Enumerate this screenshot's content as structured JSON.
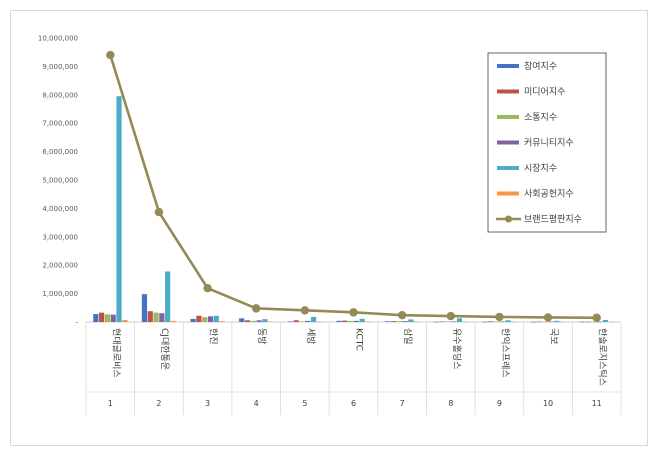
{
  "chart_data": {
    "type": "bar",
    "title": "",
    "xlabel": "",
    "ylabel": "",
    "ylim": [
      0,
      10000000
    ],
    "yticks": [
      "-",
      "1,000,000",
      "2,000,000",
      "3,000,000",
      "4,000,000",
      "5,000,000",
      "6,000,000",
      "7,000,000",
      "8,000,000",
      "9,000,000",
      "10,000,000"
    ],
    "categories": [
      "현대글로비스",
      "CJ대한통운",
      "한진",
      "동방",
      "세방",
      "KCTC",
      "삼일",
      "유수홀딩스",
      "한익스프레스",
      "국보",
      "한솔로지스틱스"
    ],
    "indices": [
      "1",
      "2",
      "3",
      "4",
      "5",
      "6",
      "7",
      "8",
      "9",
      "10",
      "11"
    ],
    "grid": false,
    "legend_position": "right",
    "series": [
      {
        "name": "참여지수",
        "kind": "bar",
        "color": "#4472c4",
        "values": [
          280000,
          980000,
          110000,
          130000,
          20000,
          40000,
          25000,
          10000,
          10000,
          8000,
          10000
        ]
      },
      {
        "name": "미디어지수",
        "kind": "bar",
        "color": "#c0504d",
        "values": [
          330000,
          380000,
          220000,
          60000,
          60000,
          50000,
          30000,
          20000,
          25000,
          15000,
          8000
        ]
      },
      {
        "name": "소통지수",
        "kind": "bar",
        "color": "#9bbb59",
        "values": [
          270000,
          330000,
          170000,
          40000,
          20000,
          40000,
          30000,
          20000,
          20000,
          15000,
          10000
        ]
      },
      {
        "name": "커뮤니티지수",
        "kind": "bar",
        "color": "#8064a2",
        "values": [
          260000,
          310000,
          200000,
          60000,
          40000,
          40000,
          30000,
          20000,
          20000,
          15000,
          10000
        ]
      },
      {
        "name": "시장지수",
        "kind": "bar",
        "color": "#4bacc6",
        "values": [
          7950000,
          1780000,
          220000,
          100000,
          180000,
          110000,
          90000,
          130000,
          60000,
          40000,
          70000
        ]
      },
      {
        "name": "사회공헌지수",
        "kind": "bar",
        "color": "#f79646",
        "values": [
          70000,
          40000,
          30000,
          20000,
          10000,
          15000,
          20000,
          10000,
          10000,
          10000,
          8000
        ]
      },
      {
        "name": "브랜드평판지수",
        "kind": "line",
        "color": "#948a54",
        "values": [
          9400000,
          3870000,
          1190000,
          480000,
          410000,
          340000,
          240000,
          210000,
          180000,
          160000,
          150000
        ]
      }
    ]
  }
}
